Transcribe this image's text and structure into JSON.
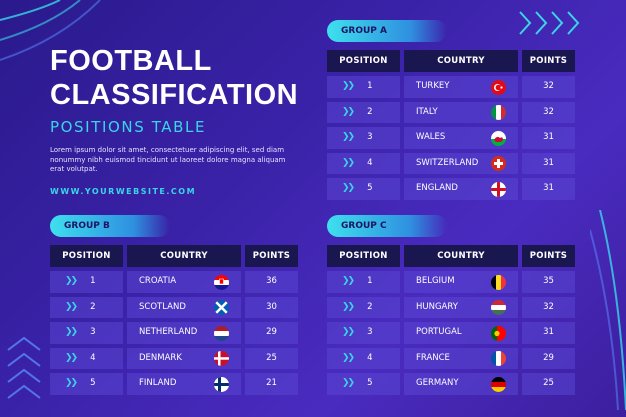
{
  "header": {
    "title_line1": "FOOTBALL",
    "title_line2": "CLASSIFICATION",
    "subtitle": "POSITIONS TABLE",
    "lorem": "Lorem ipsum dolor sit amet, consectetuer adipiscing elit, sed diam nonummy nibh euismod tincidunt ut laoreet dolore magna aliquam erat volutpat.",
    "website": "WWW.YOURWEBSITE.COM"
  },
  "columns": {
    "position": "POSITION",
    "country": "COUNTRY",
    "points": "POINTS"
  },
  "groups": {
    "a": {
      "label": "GROUP A",
      "rows": [
        {
          "pos": "1",
          "country": "TURKEY",
          "flag": "turkey-flag-icon",
          "points": "32"
        },
        {
          "pos": "2",
          "country": "ITALY",
          "flag": "italy-flag-icon",
          "points": "32"
        },
        {
          "pos": "3",
          "country": "WALES",
          "flag": "wales-flag-icon",
          "points": "31"
        },
        {
          "pos": "4",
          "country": "SWITZERLAND",
          "flag": "switzerland-flag-icon",
          "points": "31"
        },
        {
          "pos": "5",
          "country": "ENGLAND",
          "flag": "england-flag-icon",
          "points": "31"
        }
      ]
    },
    "b": {
      "label": "GROUP B",
      "rows": [
        {
          "pos": "1",
          "country": "CROATIA",
          "flag": "croatia-flag-icon",
          "points": "36"
        },
        {
          "pos": "2",
          "country": "SCOTLAND",
          "flag": "scotland-flag-icon",
          "points": "30"
        },
        {
          "pos": "3",
          "country": "NETHERLAND",
          "flag": "netherlands-flag-icon",
          "points": "29"
        },
        {
          "pos": "4",
          "country": "DENMARK",
          "flag": "denmark-flag-icon",
          "points": "25"
        },
        {
          "pos": "5",
          "country": "FINLAND",
          "flag": "finland-flag-icon",
          "points": "21"
        }
      ]
    },
    "c": {
      "label": "GROUP C",
      "rows": [
        {
          "pos": "1",
          "country": "BELGIUM",
          "flag": "belgium-flag-icon",
          "points": "35"
        },
        {
          "pos": "2",
          "country": "HUNGARY",
          "flag": "hungary-flag-icon",
          "points": "32"
        },
        {
          "pos": "3",
          "country": "PORTUGAL",
          "flag": "portugal-flag-icon",
          "points": "31"
        },
        {
          "pos": "4",
          "country": "FRANCE",
          "flag": "france-flag-icon",
          "points": "29"
        },
        {
          "pos": "5",
          "country": "GERMANY",
          "flag": "germany-flag-icon",
          "points": "25"
        }
      ]
    }
  },
  "colors": {
    "accent": "#3ad6e8",
    "header_cell": "#1a1750",
    "background": "#3a22a8"
  }
}
